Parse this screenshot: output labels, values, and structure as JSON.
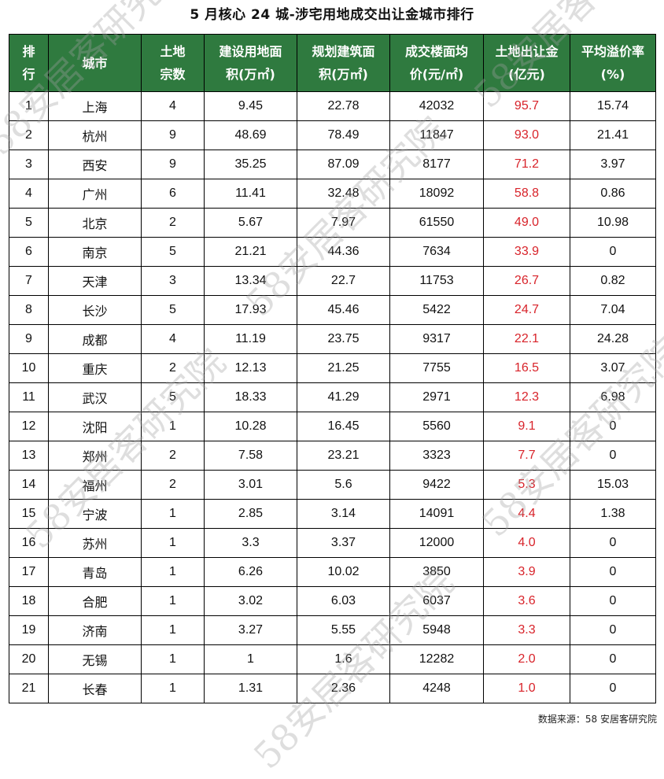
{
  "title": "5 月核心 24 城-涉宅用地成交出让金城市排行",
  "headers": {
    "rank": [
      "排",
      "行"
    ],
    "city": [
      "城市"
    ],
    "parcels": [
      "土地",
      "宗数"
    ],
    "land_area": [
      "建设用地面",
      "积(万㎡)"
    ],
    "build_area": [
      "规划建筑面",
      "积(万㎡)"
    ],
    "floor_price": [
      "成交楼面均",
      "价(元/㎡)"
    ],
    "revenue": [
      "土地出让金",
      "(亿元)"
    ],
    "premium": [
      "平均溢价率",
      "(%)"
    ]
  },
  "rows": [
    {
      "rank": "1",
      "city": "上海",
      "parcels": "4",
      "land_area": "9.45",
      "build_area": "22.78",
      "floor_price": "42032",
      "revenue": "95.7",
      "premium": "15.74"
    },
    {
      "rank": "2",
      "city": "杭州",
      "parcels": "9",
      "land_area": "48.69",
      "build_area": "78.49",
      "floor_price": "11847",
      "revenue": "93.0",
      "premium": "21.41"
    },
    {
      "rank": "3",
      "city": "西安",
      "parcels": "9",
      "land_area": "35.25",
      "build_area": "87.09",
      "floor_price": "8177",
      "revenue": "71.2",
      "premium": "3.97"
    },
    {
      "rank": "4",
      "city": "广州",
      "parcels": "6",
      "land_area": "11.41",
      "build_area": "32.48",
      "floor_price": "18092",
      "revenue": "58.8",
      "premium": "0.86"
    },
    {
      "rank": "5",
      "city": "北京",
      "parcels": "2",
      "land_area": "5.67",
      "build_area": "7.97",
      "floor_price": "61550",
      "revenue": "49.0",
      "premium": "10.98"
    },
    {
      "rank": "6",
      "city": "南京",
      "parcels": "5",
      "land_area": "21.21",
      "build_area": "44.36",
      "floor_price": "7634",
      "revenue": "33.9",
      "premium": "0"
    },
    {
      "rank": "7",
      "city": "天津",
      "parcels": "3",
      "land_area": "13.34",
      "build_area": "22.7",
      "floor_price": "11753",
      "revenue": "26.7",
      "premium": "0.82"
    },
    {
      "rank": "8",
      "city": "长沙",
      "parcels": "5",
      "land_area": "17.93",
      "build_area": "45.46",
      "floor_price": "5422",
      "revenue": "24.7",
      "premium": "7.04"
    },
    {
      "rank": "9",
      "city": "成都",
      "parcels": "4",
      "land_area": "11.19",
      "build_area": "23.75",
      "floor_price": "9317",
      "revenue": "22.1",
      "premium": "24.28"
    },
    {
      "rank": "10",
      "city": "重庆",
      "parcels": "2",
      "land_area": "12.13",
      "build_area": "21.25",
      "floor_price": "7755",
      "revenue": "16.5",
      "premium": "3.07"
    },
    {
      "rank": "11",
      "city": "武汉",
      "parcels": "5",
      "land_area": "18.33",
      "build_area": "41.29",
      "floor_price": "2971",
      "revenue": "12.3",
      "premium": "6.98"
    },
    {
      "rank": "12",
      "city": "沈阳",
      "parcels": "1",
      "land_area": "10.28",
      "build_area": "16.45",
      "floor_price": "5560",
      "revenue": "9.1",
      "premium": "0"
    },
    {
      "rank": "13",
      "city": "郑州",
      "parcels": "2",
      "land_area": "7.58",
      "build_area": "23.21",
      "floor_price": "3323",
      "revenue": "7.7",
      "premium": "0"
    },
    {
      "rank": "14",
      "city": "福州",
      "parcels": "2",
      "land_area": "3.01",
      "build_area": "5.6",
      "floor_price": "9422",
      "revenue": "5.3",
      "premium": "15.03"
    },
    {
      "rank": "15",
      "city": "宁波",
      "parcels": "1",
      "land_area": "2.85",
      "build_area": "3.14",
      "floor_price": "14091",
      "revenue": "4.4",
      "premium": "1.38"
    },
    {
      "rank": "16",
      "city": "苏州",
      "parcels": "1",
      "land_area": "3.3",
      "build_area": "3.37",
      "floor_price": "12000",
      "revenue": "4.0",
      "premium": "0"
    },
    {
      "rank": "17",
      "city": "青岛",
      "parcels": "1",
      "land_area": "6.26",
      "build_area": "10.02",
      "floor_price": "3850",
      "revenue": "3.9",
      "premium": "0"
    },
    {
      "rank": "18",
      "city": "合肥",
      "parcels": "1",
      "land_area": "3.02",
      "build_area": "6.03",
      "floor_price": "6037",
      "revenue": "3.6",
      "premium": "0"
    },
    {
      "rank": "19",
      "city": "济南",
      "parcels": "1",
      "land_area": "3.27",
      "build_area": "5.55",
      "floor_price": "5948",
      "revenue": "3.3",
      "premium": "0"
    },
    {
      "rank": "20",
      "city": "无锡",
      "parcels": "1",
      "land_area": "1",
      "build_area": "1.6",
      "floor_price": "12282",
      "revenue": "2.0",
      "premium": "0"
    },
    {
      "rank": "21",
      "city": "长春",
      "parcels": "1",
      "land_area": "1.31",
      "build_area": "2.36",
      "floor_price": "4248",
      "revenue": "1.0",
      "premium": "0"
    }
  ],
  "source": "数据来源：58 安居客研究院",
  "watermark": "58安居客研究院",
  "colors": {
    "header_bg": "#2f7a3f",
    "header_text": "#ffffff",
    "revenue_text": "#d8232a"
  }
}
